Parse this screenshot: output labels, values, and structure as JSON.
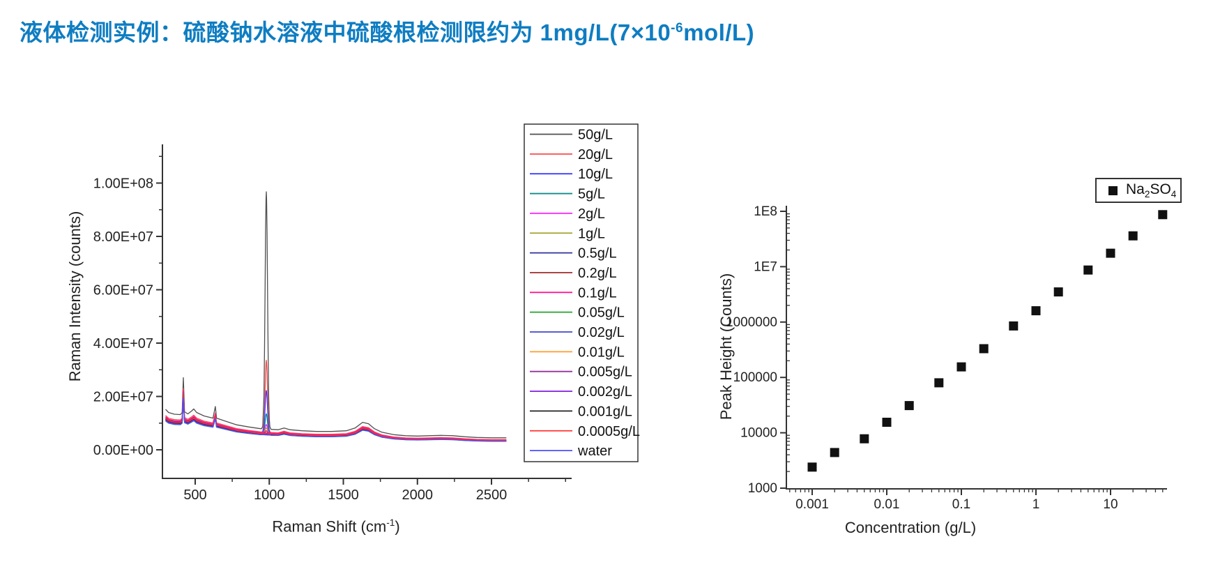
{
  "page": {
    "background": "#ffffff"
  },
  "title": {
    "text_main": "液体检测实例：硫酸钠水溶液中硫酸根检测限约为 1mg/L(7×10",
    "sup": "-6",
    "text_end": "mol/L)",
    "color": "#0e7dc2"
  },
  "chart_data": [
    {
      "id": "raman-spectra",
      "type": "line",
      "xlabel": {
        "main": "Raman Shift (cm",
        "sup": "-1",
        "end": ")"
      },
      "ylabel": "Raman Intensity (counts)",
      "xlim": [
        280,
        3050
      ],
      "ylim": [
        -10700000,
        113700000
      ],
      "xticks": [
        500,
        1000,
        1500,
        2000,
        2500
      ],
      "xtick_labels": [
        "500",
        "1000",
        "1500",
        "2000",
        "2500"
      ],
      "xticks_minor": [
        750,
        1250,
        1750,
        2250,
        2750,
        3000
      ],
      "yticks": [
        0,
        20000000.0,
        40000000.0,
        60000000.0,
        80000000.0,
        100000000.0
      ],
      "ytick_labels": [
        "0.00E+00",
        "2.00E+07",
        "4.00E+07",
        "6.00E+07",
        "8.00E+07",
        "1.00E+08"
      ],
      "yticks_minor": [
        10000000.0,
        30000000.0,
        50000000.0,
        70000000.0,
        90000000.0,
        110000000.0
      ],
      "grid": false,
      "legend_position": "right-outside",
      "sulfate_peak_center_cm1": 980,
      "sulfate_peak_sigma_cm1": 8,
      "baseline": [
        [
          300,
          11500000.0
        ],
        [
          320,
          10600000.0
        ],
        [
          360,
          10100000.0
        ],
        [
          400,
          10000000.0
        ],
        [
          412,
          10600000.0
        ],
        [
          420,
          20500000.0
        ],
        [
          428,
          10800000.0
        ],
        [
          450,
          10200000.0
        ],
        [
          475,
          11000000.0
        ],
        [
          490,
          11600000.0
        ],
        [
          510,
          10600000.0
        ],
        [
          560,
          9600000.0
        ],
        [
          620,
          9000000.0
        ],
        [
          636,
          12300000.0
        ],
        [
          644,
          9000000.0
        ],
        [
          700,
          8200000.0
        ],
        [
          780,
          7100000.0
        ],
        [
          860,
          6500000.0
        ],
        [
          940,
          6000000.0
        ],
        [
          1000,
          5800000.0
        ],
        [
          1060,
          5700000.0
        ],
        [
          1100,
          6200000.0
        ],
        [
          1140,
          5700000.0
        ],
        [
          1220,
          5400000.0
        ],
        [
          1320,
          5200000.0
        ],
        [
          1420,
          5200000.0
        ],
        [
          1520,
          5400000.0
        ],
        [
          1580,
          6200000.0
        ],
        [
          1630,
          7800000.0
        ],
        [
          1670,
          7400000.0
        ],
        [
          1710,
          6000000.0
        ],
        [
          1760,
          5000000.0
        ],
        [
          1840,
          4300000.0
        ],
        [
          1920,
          4000000.0
        ],
        [
          2000,
          3900000.0
        ],
        [
          2080,
          4000000.0
        ],
        [
          2160,
          4100000.0
        ],
        [
          2240,
          4000000.0
        ],
        [
          2320,
          3700000.0
        ],
        [
          2400,
          3500000.0
        ],
        [
          2500,
          3400000.0
        ],
        [
          2600,
          3400000.0
        ]
      ],
      "series": [
        {
          "name": "50g/L",
          "color": "#4f4f4f",
          "baseline_scale": 1.32,
          "peak_height": 89000000.0
        },
        {
          "name": "20g/L",
          "color": "#f94c4c",
          "baseline_scale": 1.12,
          "peak_height": 27000000.0
        },
        {
          "name": "10g/L",
          "color": "#3d3dff",
          "baseline_scale": 1.06,
          "peak_height": 16000000.0
        },
        {
          "name": "5g/L",
          "color": "#0f8b8b",
          "baseline_scale": 0.94,
          "peak_height": 8000000.0
        },
        {
          "name": "2g/L",
          "color": "#ff22ff",
          "baseline_scale": 1.0,
          "peak_height": 3600000.0
        },
        {
          "name": "1g/L",
          "color": "#a2a22e",
          "baseline_scale": 1.02,
          "peak_height": 2200000.0
        },
        {
          "name": "0.5g/L",
          "color": "#31319b",
          "baseline_scale": 0.98,
          "peak_height": 1400000.0
        },
        {
          "name": "0.2g/L",
          "color": "#a83838",
          "baseline_scale": 1.04,
          "peak_height": 900000.0
        },
        {
          "name": "0.1g/L",
          "color": "#ff1493",
          "baseline_scale": 1.08,
          "peak_height": 700000.0
        },
        {
          "name": "0.05g/L",
          "color": "#22a32e",
          "baseline_scale": 0.96,
          "peak_height": 500000.0
        },
        {
          "name": "0.02g/L",
          "color": "#4444cc",
          "baseline_scale": 1.01,
          "peak_height": 400000.0
        },
        {
          "name": "0.01g/L",
          "color": "#ff9d2e",
          "baseline_scale": 0.99,
          "peak_height": 300000.0
        },
        {
          "name": "0.005g/L",
          "color": "#93309b",
          "baseline_scale": 1.03,
          "peak_height": 250000.0
        },
        {
          "name": "0.002g/L",
          "color": "#8a2be2",
          "baseline_scale": 0.97,
          "peak_height": 200000.0
        },
        {
          "name": "0.001g/L",
          "color": "#222222",
          "baseline_scale": 1.0,
          "peak_height": 150000.0
        },
        {
          "name": "0.0005g/L",
          "color": "#ff3333",
          "baseline_scale": 1.02,
          "peak_height": 100000.0
        },
        {
          "name": "water",
          "color": "#4d4dff",
          "baseline_scale": 0.95,
          "peak_height": 0
        }
      ]
    },
    {
      "id": "calibration-curve",
      "type": "scatter",
      "xlabel": "Concentration (g/L)",
      "ylabel": "Peak Height (Counts)",
      "x_scale": "log",
      "y_scale": "log",
      "xlim": [
        0.00045,
        57
      ],
      "ylim": [
        1000,
        126000000.0
      ],
      "xticks": [
        0.001,
        0.01,
        0.1,
        1,
        10
      ],
      "xtick_labels": [
        "0.001",
        "0.01",
        "0.1",
        "1",
        "10"
      ],
      "yticks": [
        1000,
        10000,
        100000,
        1000000,
        10000000.0,
        100000000.0
      ],
      "ytick_labels": [
        "1000",
        "10000",
        "100000",
        "1000000",
        "1E7",
        "1E8"
      ],
      "grid": false,
      "marker": "square",
      "marker_color": "#111111",
      "legend_label": {
        "pre": "Na",
        "sub1": "2",
        "mid": "SO",
        "sub2": "4"
      },
      "x": [
        0.001,
        0.002,
        0.005,
        0.01,
        0.02,
        0.05,
        0.1,
        0.2,
        0.5,
        1,
        2,
        5,
        10,
        20,
        50
      ],
      "y": [
        2400,
        4400,
        7800,
        15500,
        31000,
        80000,
        155000,
        330000,
        850000,
        1600000.0,
        3500000.0,
        8700000.0,
        17500000.0,
        36000000.0,
        87000000.0
      ]
    }
  ],
  "style": {
    "axis_color": "#333333",
    "tick_label_color": "#222222"
  }
}
